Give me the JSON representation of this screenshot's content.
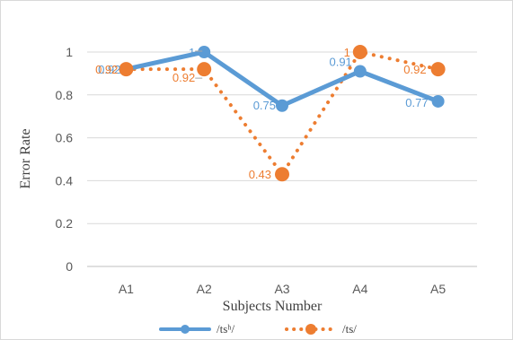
{
  "chart_data": {
    "type": "line",
    "title": "",
    "xlabel": "Subjects Number",
    "ylabel": "Error Rate",
    "categories": [
      "A1",
      "A2",
      "A3",
      "A4",
      "A5"
    ],
    "ylim": [
      0,
      1
    ],
    "yticks": [
      "0",
      "0.2",
      "0.4",
      "0.6",
      "0.8",
      "1"
    ],
    "grid": true,
    "legend_position": "bottom",
    "series": [
      {
        "name": "/tsʰ/",
        "values": [
          0.92,
          1,
          0.75,
          0.91,
          0.77
        ],
        "labels": [
          "0.92",
          "1",
          "0.75",
          "0.91",
          "0.77"
        ],
        "color": "#5b9bd5",
        "style": "solid"
      },
      {
        "name": "/ts/",
        "values": [
          0.92,
          0.92,
          0.43,
          1,
          0.92
        ],
        "labels": [
          "0.92",
          "0.92",
          "0.43",
          "1",
          "0.92"
        ],
        "color": "#ed7d31",
        "style": "dotted"
      }
    ]
  }
}
